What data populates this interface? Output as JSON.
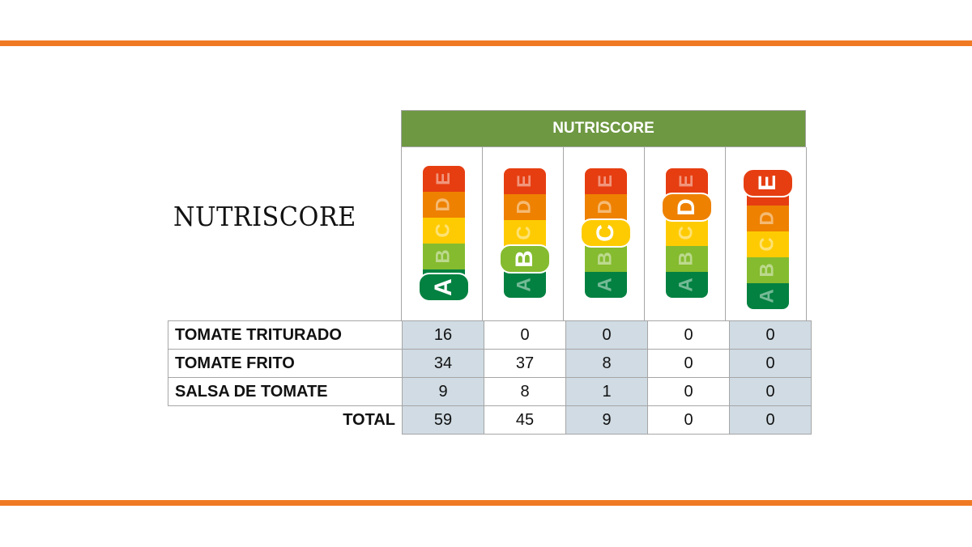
{
  "side_title": "NUTRISCORE",
  "header_title": "NUTRISCORE",
  "colors": {
    "rule": "#f07a24",
    "header": "#6e9842",
    "shade": "#d0dbe3",
    "A": "#038141",
    "B": "#85bb2f",
    "C": "#fecb02",
    "D": "#ee8100",
    "E": "#e63e11"
  },
  "grades": [
    "A",
    "B",
    "C",
    "D",
    "E"
  ],
  "rows": [
    {
      "label": "TOMATE TRITURADO",
      "values": [
        "16",
        "0",
        "0",
        "0",
        "0"
      ]
    },
    {
      "label": "TOMATE FRITO",
      "values": [
        "34",
        "37",
        "8",
        "0",
        "0"
      ]
    },
    {
      "label": "SALSA DE TOMATE",
      "values": [
        "9",
        "8",
        "1",
        "0",
        "0"
      ]
    }
  ],
  "total": {
    "label": "TOTAL",
    "values": [
      "59",
      "45",
      "9",
      "0",
      "0"
    ]
  },
  "chart_data": {
    "type": "table",
    "title": "NUTRISCORE",
    "categories": [
      "A",
      "B",
      "C",
      "D",
      "E"
    ],
    "series": [
      {
        "name": "TOMATE TRITURADO",
        "values": [
          16,
          0,
          0,
          0,
          0
        ]
      },
      {
        "name": "TOMATE FRITO",
        "values": [
          34,
          37,
          8,
          0,
          0
        ]
      },
      {
        "name": "SALSA DE TOMATE",
        "values": [
          9,
          8,
          1,
          0,
          0
        ]
      },
      {
        "name": "TOTAL",
        "values": [
          59,
          45,
          9,
          0,
          0
        ]
      }
    ]
  }
}
